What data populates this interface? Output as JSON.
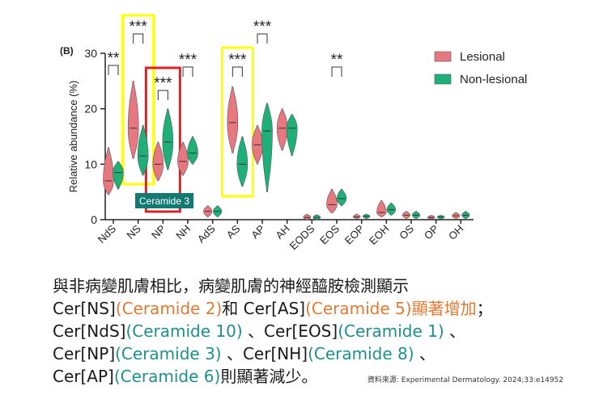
{
  "chart_data": {
    "type": "violin",
    "panel_label": "(B)",
    "ylabel": "Relative abundance (%)",
    "xlabel": "",
    "ylim": [
      0,
      30
    ],
    "yticks": [
      0,
      10,
      20,
      30
    ],
    "categories": [
      "NdS",
      "NS",
      "NP",
      "NH",
      "AdS",
      "AS",
      "AP",
      "AH",
      "EODS",
      "EOS",
      "EOP",
      "EOH",
      "OS",
      "OP",
      "OH"
    ],
    "series": [
      {
        "name": "Lesional",
        "color": "#e8787f",
        "medians": [
          7,
          16.5,
          10,
          10.5,
          1.5,
          17.5,
          13.5,
          16.5,
          0.4,
          2.7,
          0.5,
          1.3,
          0.8,
          0.4,
          0.7
        ],
        "low": [
          4.5,
          11,
          7,
          8,
          0.5,
          12,
          10,
          12.5,
          0,
          1.2,
          0.2,
          0.5,
          0.2,
          0.1,
          0.2
        ],
        "high": [
          13,
          25,
          14,
          14,
          2.5,
          24,
          17,
          20,
          1,
          5.5,
          1,
          3.5,
          1.5,
          0.8,
          1.3
        ]
      },
      {
        "name": "Non-lesional",
        "color": "#1fb07a",
        "medians": [
          8.5,
          11.5,
          14,
          12,
          1.5,
          10,
          16,
          16.5,
          0.4,
          3.8,
          0.6,
          1.8,
          0.8,
          0.5,
          0.8
        ],
        "low": [
          5.5,
          8,
          9,
          10,
          0.5,
          6,
          5,
          11.5,
          0,
          2.5,
          0.2,
          0.8,
          0.2,
          0.1,
          0.2
        ],
        "high": [
          10.5,
          17,
          20,
          15,
          2.5,
          15,
          21,
          19,
          0.9,
          5.5,
          1,
          3,
          1.5,
          0.8,
          1.5
        ]
      }
    ],
    "significance": [
      {
        "label": "**",
        "category": "NdS"
      },
      {
        "label": "***",
        "category": "NS"
      },
      {
        "label": "***",
        "category": "NP"
      },
      {
        "label": "***",
        "category": "NH"
      },
      {
        "label": "***",
        "category": "AS"
      },
      {
        "label": "***",
        "category": "AP"
      },
      {
        "label": "**",
        "category": "EOS"
      }
    ],
    "highlights": [
      {
        "category": "NS",
        "color": "#ffff00"
      },
      {
        "category": "NP",
        "color": "#e02020"
      },
      {
        "category": "AS",
        "color": "#ffff00"
      }
    ],
    "annotation": "Ceramide 3",
    "legend_position": "top-right"
  },
  "caption": {
    "line1": "與非病變肌膚相比，病變肌膚的神經醯胺檢測顯示",
    "line2": {
      "a": "Cer[NS]",
      "b": "(Ceramide 2)",
      "c": "和 Cer[AS]",
      "d": "(Ceramide 5)",
      "e": "顯著增加",
      "f": "；"
    },
    "line3": {
      "a": "Cer[NdS]",
      "b": "(Ceramide 10)",
      "c": " 、Cer[EOS]",
      "d": "(Ceramide 1)",
      "e": " 、"
    },
    "line4": {
      "a": "Cer[NP]",
      "b": "(Ceramide 3)",
      "c": " 、Cer[NH]",
      "d": "(Ceramide 8)",
      "e": " 、"
    },
    "line5": {
      "a": "Cer[AP]",
      "b": "(Ceramide 6)",
      "c": "則顯著減少。"
    }
  },
  "source": "資料來源: Experimental Dermatology. 2024;33:e14952"
}
